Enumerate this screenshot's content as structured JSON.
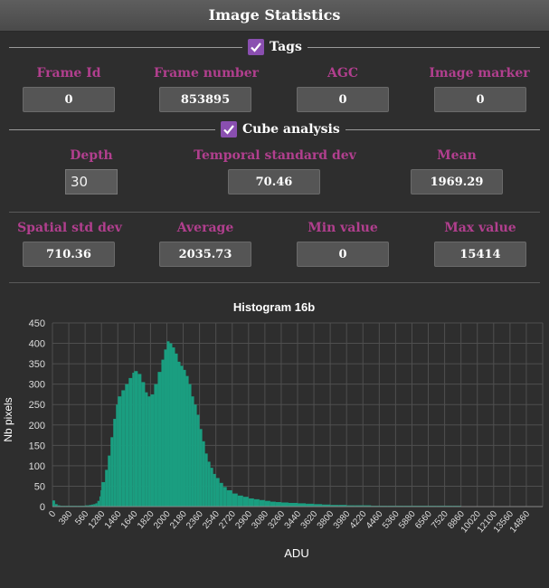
{
  "panel": {
    "title": "Image Statistics"
  },
  "tags": {
    "legend": "Tags",
    "fields": [
      {
        "label": "Frame Id",
        "value": "0"
      },
      {
        "label": "Frame number",
        "value": "853895"
      },
      {
        "label": "AGC",
        "value": "0"
      },
      {
        "label": "Image marker",
        "value": "0"
      }
    ]
  },
  "cube": {
    "legend": "Cube analysis",
    "depth_label": "Depth",
    "depth_value": "30",
    "temporal_label": "Temporal standard dev",
    "temporal_value": "70.46",
    "mean_label": "Mean",
    "mean_value": "1969.29"
  },
  "stats": {
    "fields": [
      {
        "label": "Spatial std dev",
        "value": "710.36"
      },
      {
        "label": "Average",
        "value": "2035.73"
      },
      {
        "label": "Min value",
        "value": "0"
      },
      {
        "label": "Max value",
        "value": "15414"
      }
    ]
  },
  "colors": {
    "accent": "#8a4fb0",
    "label": "#b13f8e",
    "bars": "#1a9e80"
  },
  "chart_data": {
    "type": "bar",
    "title": "Histogram 16b",
    "xlabel": "ADU",
    "ylabel": "Nb pixels",
    "ylim": [
      0,
      450
    ],
    "y_ticks": [
      0,
      50,
      100,
      150,
      200,
      250,
      300,
      350,
      400,
      450
    ],
    "x_tick_labels": [
      "0",
      "380",
      "560",
      "1280",
      "1460",
      "1640",
      "1820",
      "2000",
      "2180",
      "2360",
      "2540",
      "2720",
      "2900",
      "3080",
      "3260",
      "3440",
      "3620",
      "3800",
      "3980",
      "4220",
      "4460",
      "5360",
      "5880",
      "6560",
      "7520",
      "8860",
      "10020",
      "12100",
      "13560",
      "14860"
    ],
    "grid": true,
    "bars": [
      [
        0,
        15
      ],
      [
        60,
        6
      ],
      [
        120,
        3
      ],
      [
        180,
        2
      ],
      [
        240,
        2
      ],
      [
        300,
        2
      ],
      [
        380,
        2
      ],
      [
        470,
        2
      ],
      [
        560,
        3
      ],
      [
        650,
        3
      ],
      [
        740,
        4
      ],
      [
        830,
        5
      ],
      [
        920,
        6
      ],
      [
        1010,
        8
      ],
      [
        1100,
        14
      ],
      [
        1190,
        25
      ],
      [
        1240,
        40
      ],
      [
        1280,
        60
      ],
      [
        1320,
        90
      ],
      [
        1350,
        125
      ],
      [
        1380,
        170
      ],
      [
        1410,
        215
      ],
      [
        1440,
        250
      ],
      [
        1460,
        270
      ],
      [
        1500,
        285
      ],
      [
        1540,
        300
      ],
      [
        1580,
        315
      ],
      [
        1620,
        328
      ],
      [
        1640,
        332
      ],
      [
        1680,
        325
      ],
      [
        1720,
        305
      ],
      [
        1760,
        280
      ],
      [
        1790,
        270
      ],
      [
        1820,
        275
      ],
      [
        1860,
        300
      ],
      [
        1900,
        330
      ],
      [
        1940,
        360
      ],
      [
        1970,
        385
      ],
      [
        2000,
        405
      ],
      [
        2030,
        400
      ],
      [
        2060,
        390
      ],
      [
        2090,
        375
      ],
      [
        2120,
        355
      ],
      [
        2150,
        345
      ],
      [
        2180,
        335
      ],
      [
        2210,
        320
      ],
      [
        2240,
        300
      ],
      [
        2270,
        270
      ],
      [
        2300,
        250
      ],
      [
        2330,
        225
      ],
      [
        2360,
        190
      ],
      [
        2390,
        160
      ],
      [
        2420,
        130
      ],
      [
        2450,
        110
      ],
      [
        2480,
        95
      ],
      [
        2510,
        80
      ],
      [
        2540,
        70
      ],
      [
        2580,
        58
      ],
      [
        2620,
        48
      ],
      [
        2660,
        40
      ],
      [
        2720,
        32
      ],
      [
        2780,
        27
      ],
      [
        2840,
        24
      ],
      [
        2900,
        20
      ],
      [
        2960,
        18
      ],
      [
        3020,
        16
      ],
      [
        3080,
        14
      ],
      [
        3140,
        12
      ],
      [
        3200,
        11
      ],
      [
        3260,
        10
      ],
      [
        3340,
        9
      ],
      [
        3440,
        8
      ],
      [
        3530,
        7
      ],
      [
        3620,
        6
      ],
      [
        3710,
        5
      ],
      [
        3800,
        4
      ],
      [
        3890,
        4
      ],
      [
        3980,
        3
      ],
      [
        4100,
        3
      ],
      [
        4220,
        3
      ],
      [
        4340,
        2
      ],
      [
        4460,
        2
      ],
      [
        4900,
        2
      ],
      [
        5360,
        2
      ],
      [
        5620,
        2
      ],
      [
        5880,
        2
      ],
      [
        6220,
        2
      ],
      [
        6560,
        2
      ],
      [
        7040,
        2
      ],
      [
        7520,
        2
      ],
      [
        8190,
        2
      ],
      [
        8860,
        1
      ],
      [
        9440,
        1
      ],
      [
        10020,
        1
      ],
      [
        11060,
        1
      ],
      [
        12100,
        1
      ],
      [
        12830,
        1
      ],
      [
        13560,
        1
      ],
      [
        14210,
        1
      ],
      [
        14860,
        1
      ]
    ]
  }
}
